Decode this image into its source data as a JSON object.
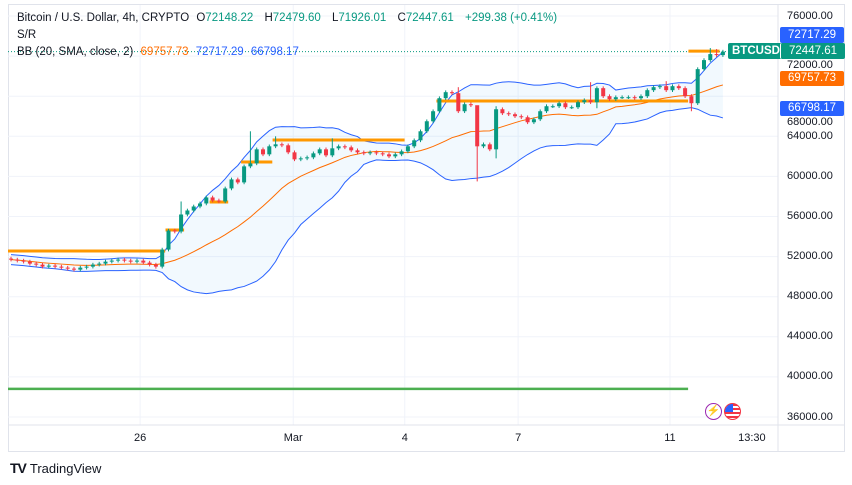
{
  "header": {
    "symbol": "Bitcoin / U.S. Dollar, 4h, CRYPTO",
    "open_label": "O",
    "open": "72148.22",
    "high_label": "H",
    "high": "72479.60",
    "low_label": "L",
    "low": "71926.01",
    "close_label": "C",
    "close": "72447.61",
    "change": "+299.38 (+0.41%)",
    "sr_label": "S/R",
    "bb_label": "BB (20, SMA, close, 2)",
    "bb_basis": "69757.73",
    "bb_upper": "72717.29",
    "bb_lower": "66798.17"
  },
  "price_tags": {
    "upper": "72717.29",
    "symbol": "BTCUSD",
    "last": "72447.61",
    "basis": "69757.73",
    "lower": "66798.17"
  },
  "footer": {
    "brand": "TradingView"
  },
  "icons": [
    "lightning-icon",
    "us-flag-icon",
    "tradingview-logo-icon"
  ],
  "colors": {
    "up": "#089981",
    "down": "#f23645",
    "bb_basis": "#ff6d00",
    "bb_band": "#2962ff",
    "sr": "#ff9800",
    "support_green": "#4caf50"
  },
  "chart_data": {
    "type": "candlestick",
    "title": "Bitcoin / U.S. Dollar, 4h, CRYPTO",
    "interval": "4h",
    "ylim": [
      34000,
      76800
    ],
    "y_ticks": [
      "76000.00",
      "72000.00",
      "68000.00",
      "64000.00",
      "60000.00",
      "56000.00",
      "52000.00",
      "48000.00",
      "44000.00",
      "40000.00",
      "36000.00"
    ],
    "x_ticks": [
      "26",
      "Mar",
      "4",
      "7",
      "11",
      "13:30"
    ],
    "grid": true,
    "first_open": 51800,
    "close": [
      51700,
      51600,
      51500,
      51300,
      51200,
      51000,
      51100,
      51000,
      50900,
      50800,
      50700,
      50900,
      51000,
      51200,
      51300,
      51500,
      51600,
      51700,
      51600,
      51500,
      51600,
      51400,
      51200,
      51000,
      52700,
      54600,
      54500,
      56200,
      56600,
      57000,
      57300,
      57900,
      57600,
      57500,
      58800,
      59700,
      59400,
      61000,
      61300,
      62700,
      62200,
      63000,
      63200,
      63100,
      62400,
      61700,
      61800,
      61900,
      62300,
      62700,
      62100,
      62800,
      63000,
      62900,
      62600,
      62400,
      62300,
      62400,
      62300,
      62200,
      62000,
      62200,
      62500,
      63000,
      63600,
      64500,
      65500,
      66500,
      67800,
      68400,
      68300,
      66500,
      67200,
      67100,
      63000,
      63200,
      62700,
      66700,
      66300,
      66200,
      66000,
      65900,
      65400,
      65700,
      66500,
      67000,
      67000,
      67300,
      66900,
      66900,
      67400,
      67600,
      67400,
      68800,
      68000,
      67700,
      67900,
      67900,
      67900,
      67800,
      68000,
      68600,
      68900,
      69000,
      68600,
      69000,
      68800,
      68000,
      67300,
      70700,
      71600,
      72200,
      72100,
      72447.61
    ],
    "highs": {
      "27": 57500,
      "38": 64500,
      "42": 64000,
      "51": 63800,
      "71": 68900,
      "74": 67000,
      "77": 67000,
      "92": 69400,
      "104": 69500,
      "108": 68200,
      "111": 72800,
      "112": 72700
    },
    "lows": {
      "23": 50800,
      "74": 59500,
      "77": 61800,
      "93": 66800,
      "108": 66500
    },
    "indicators": {
      "bollinger": {
        "length": 20,
        "type": "SMA",
        "source": "close",
        "mult": 2,
        "basis": 69757.73,
        "upper": 72717.29,
        "lower": 66798.17
      }
    },
    "sr_levels": [
      {
        "price": 52560,
        "from": 0,
        "to": 24
      },
      {
        "price": 54650,
        "from": 25,
        "to": 27
      },
      {
        "price": 57450,
        "from": 32,
        "to": 34
      },
      {
        "price": 61440,
        "from": 37,
        "to": 41
      },
      {
        "price": 63630,
        "from": 42,
        "to": 62
      },
      {
        "price": 67520,
        "from": 68,
        "to": 107
      },
      {
        "price": 72500,
        "from": 108,
        "to": 112
      }
    ],
    "support_line": {
      "price": 38800,
      "from": 0,
      "to": 107
    }
  }
}
